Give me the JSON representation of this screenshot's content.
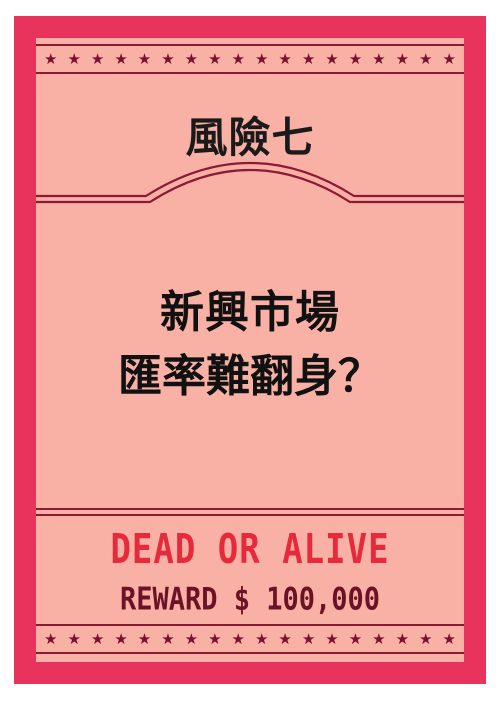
{
  "poster": {
    "title": "風險七",
    "headline_line1": "新興市場",
    "headline_line2": "匯率難翻身？",
    "dead_or_alive": "DEAD OR ALIVE",
    "reward": "REWARD $ 100,000",
    "colors": {
      "border": "#e8345c",
      "paper": "#f9b1a6",
      "ink": "#7a1030",
      "dead_text": "#e62a3c",
      "reward_text": "#6b1226"
    },
    "star_glyph": "★"
  }
}
